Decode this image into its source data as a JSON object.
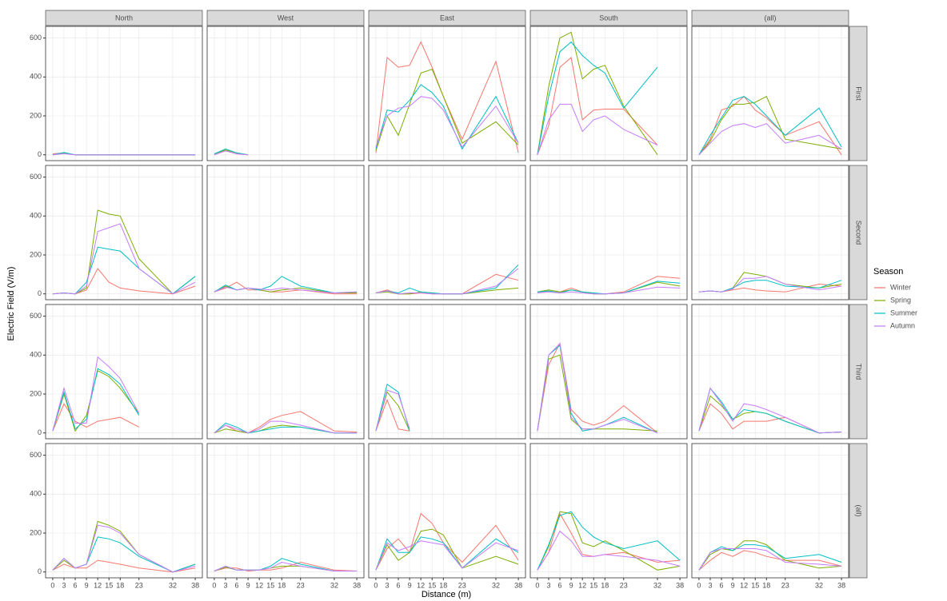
{
  "chart_data": {
    "type": "line",
    "x_label": "Distance (m)",
    "y_label": "Electric Field (V/m)",
    "legend_title": "Season",
    "legend_position": "right",
    "grid": true,
    "columns": [
      "North",
      "West",
      "East",
      "South",
      "(all)"
    ],
    "rows": [
      "First",
      "Second",
      "Third",
      "(all)"
    ],
    "x": [
      0,
      3,
      6,
      9,
      12,
      15,
      18,
      23,
      32,
      38
    ],
    "xlim": [
      -1.9,
      39.9
    ],
    "xticks": [
      0,
      3,
      6,
      9,
      12,
      15,
      18,
      23,
      32,
      38
    ],
    "ylim": [
      -30,
      660
    ],
    "yticks": [
      0,
      200,
      400,
      600
    ],
    "series": [
      {
        "name": "Winter",
        "color": "#F8766D"
      },
      {
        "name": "Spring",
        "color": "#7CAE00"
      },
      {
        "name": "Summer",
        "color": "#00BFC4"
      },
      {
        "name": "Autumn",
        "color": "#C77CFF"
      }
    ],
    "panels": [
      [
        [
          [
            5,
            10,
            0,
            0,
            0,
            0,
            0,
            0,
            0,
            0
          ],
          [
            0,
            8,
            0,
            0,
            0,
            0,
            0,
            0,
            0,
            0
          ],
          [
            0,
            12,
            0,
            0,
            0,
            0,
            0,
            0,
            0,
            0
          ],
          [
            0,
            6,
            0,
            0,
            0,
            0,
            0,
            0,
            0,
            0
          ]
        ],
        [
          [
            0,
            20,
            5,
            0,
            null,
            null,
            null,
            null,
            null,
            null
          ],
          [
            5,
            25,
            10,
            0,
            null,
            null,
            null,
            null,
            null,
            null
          ],
          [
            5,
            30,
            10,
            0,
            null,
            null,
            null,
            null,
            null,
            null
          ],
          [
            0,
            20,
            5,
            0,
            null,
            null,
            null,
            null,
            null,
            null
          ]
        ],
        [
          [
            10,
            500,
            450,
            460,
            580,
            450,
            300,
            80,
            480,
            10
          ],
          [
            20,
            200,
            100,
            260,
            420,
            440,
            300,
            60,
            170,
            50
          ],
          [
            30,
            230,
            220,
            280,
            360,
            320,
            250,
            30,
            300,
            60
          ],
          [
            40,
            200,
            240,
            250,
            300,
            290,
            230,
            40,
            250,
            60
          ]
        ],
        [
          [
            0,
            150,
            450,
            500,
            180,
            230,
            235,
            235,
            50,
            null
          ],
          [
            0,
            350,
            600,
            630,
            390,
            440,
            460,
            250,
            0,
            null
          ],
          [
            0,
            300,
            530,
            580,
            510,
            460,
            420,
            240,
            450,
            null
          ],
          [
            0,
            180,
            260,
            260,
            120,
            180,
            200,
            130,
            50,
            null
          ]
        ],
        [
          [
            0,
            80,
            230,
            250,
            300,
            230,
            190,
            100,
            170,
            0
          ],
          [
            0,
            70,
            180,
            260,
            260,
            270,
            300,
            80,
            50,
            30
          ],
          [
            0,
            100,
            190,
            280,
            300,
            260,
            200,
            100,
            240,
            40
          ],
          [
            0,
            60,
            120,
            150,
            160,
            140,
            160,
            60,
            100,
            30
          ]
        ]
      ],
      [
        [
          [
            0,
            5,
            0,
            20,
            130,
            60,
            30,
            15,
            0,
            40
          ],
          [
            0,
            5,
            0,
            30,
            430,
            410,
            400,
            180,
            0,
            90
          ],
          [
            0,
            5,
            0,
            60,
            240,
            230,
            220,
            130,
            0,
            90
          ],
          [
            0,
            5,
            0,
            40,
            320,
            340,
            360,
            130,
            0,
            60
          ]
        ],
        [
          [
            10,
            30,
            60,
            20,
            20,
            10,
            10,
            20,
            0,
            0
          ],
          [
            10,
            40,
            20,
            30,
            20,
            10,
            20,
            30,
            5,
            5
          ],
          [
            10,
            45,
            20,
            30,
            20,
            40,
            90,
            40,
            5,
            10
          ],
          [
            10,
            35,
            20,
            30,
            25,
            20,
            30,
            20,
            5,
            10
          ]
        ],
        [
          [
            5,
            20,
            0,
            0,
            5,
            0,
            0,
            0,
            100,
            70
          ],
          [
            5,
            10,
            0,
            0,
            10,
            5,
            0,
            0,
            20,
            30
          ],
          [
            5,
            15,
            5,
            30,
            10,
            5,
            0,
            0,
            30,
            150
          ],
          [
            5,
            15,
            0,
            5,
            5,
            0,
            0,
            0,
            40,
            130
          ]
        ],
        [
          [
            10,
            10,
            10,
            30,
            10,
            0,
            0,
            10,
            90,
            80
          ],
          [
            10,
            20,
            10,
            20,
            10,
            0,
            0,
            5,
            60,
            40
          ],
          [
            10,
            15,
            5,
            20,
            10,
            5,
            0,
            5,
            65,
            55
          ],
          [
            5,
            10,
            5,
            10,
            5,
            0,
            0,
            5,
            35,
            30
          ]
        ],
        [
          [
            10,
            15,
            10,
            20,
            30,
            20,
            15,
            10,
            50,
            40
          ],
          [
            10,
            15,
            10,
            30,
            110,
            100,
            90,
            50,
            30,
            50
          ],
          [
            10,
            15,
            10,
            30,
            60,
            70,
            70,
            40,
            30,
            70
          ],
          [
            10,
            15,
            10,
            25,
            80,
            80,
            90,
            50,
            20,
            40
          ]
        ]
      ],
      [
        [
          [
            10,
            150,
            60,
            30,
            60,
            70,
            80,
            30,
            null,
            null
          ],
          [
            10,
            200,
            10,
            90,
            320,
            290,
            230,
            100,
            null,
            null
          ],
          [
            10,
            210,
            20,
            70,
            330,
            300,
            250,
            90,
            null,
            null
          ],
          [
            10,
            230,
            50,
            50,
            390,
            340,
            280,
            100,
            null,
            null
          ]
        ],
        [
          [
            0,
            40,
            10,
            0,
            30,
            70,
            90,
            110,
            10,
            5
          ],
          [
            0,
            20,
            10,
            0,
            10,
            30,
            40,
            30,
            0,
            0
          ],
          [
            0,
            50,
            30,
            0,
            10,
            20,
            30,
            30,
            0,
            0
          ],
          [
            0,
            40,
            20,
            0,
            20,
            60,
            60,
            40,
            0,
            0
          ]
        ],
        [
          [
            10,
            170,
            20,
            10,
            null,
            null,
            null,
            null,
            null,
            null
          ],
          [
            10,
            210,
            140,
            10,
            null,
            null,
            null,
            null,
            null,
            null
          ],
          [
            10,
            250,
            210,
            10,
            null,
            null,
            null,
            null,
            null,
            null
          ],
          [
            10,
            220,
            200,
            20,
            null,
            null,
            null,
            null,
            null,
            null
          ]
        ],
        [
          [
            10,
            350,
            460,
            120,
            60,
            40,
            60,
            140,
            0,
            null
          ],
          [
            10,
            380,
            400,
            70,
            20,
            20,
            20,
            20,
            10,
            null
          ],
          [
            10,
            400,
            450,
            100,
            10,
            20,
            40,
            80,
            0,
            null
          ],
          [
            10,
            400,
            460,
            80,
            20,
            20,
            40,
            70,
            0,
            null
          ]
        ],
        [
          [
            10,
            150,
            100,
            20,
            60,
            60,
            60,
            80,
            0,
            5
          ],
          [
            10,
            190,
            140,
            70,
            100,
            110,
            100,
            60,
            0,
            5
          ],
          [
            10,
            230,
            160,
            70,
            120,
            110,
            100,
            60,
            0,
            5
          ],
          [
            10,
            230,
            150,
            60,
            150,
            140,
            120,
            80,
            0,
            5
          ]
        ]
      ],
      [
        [
          [
            10,
            40,
            20,
            20,
            60,
            50,
            40,
            20,
            0,
            20
          ],
          [
            10,
            60,
            20,
            40,
            260,
            240,
            210,
            90,
            0,
            40
          ],
          [
            10,
            70,
            20,
            40,
            180,
            170,
            150,
            80,
            0,
            40
          ],
          [
            10,
            70,
            20,
            40,
            240,
            230,
            200,
            90,
            0,
            30
          ]
        ],
        [
          [
            5,
            20,
            20,
            5,
            10,
            10,
            20,
            50,
            10,
            5
          ],
          [
            5,
            25,
            10,
            10,
            10,
            20,
            30,
            30,
            5,
            5
          ],
          [
            5,
            30,
            10,
            10,
            10,
            30,
            70,
            40,
            5,
            5
          ],
          [
            5,
            30,
            10,
            10,
            10,
            20,
            50,
            30,
            5,
            5
          ]
        ],
        [
          [
            10,
            120,
            170,
            100,
            300,
            250,
            150,
            50,
            240,
            60
          ],
          [
            10,
            140,
            60,
            100,
            210,
            220,
            190,
            20,
            80,
            40
          ],
          [
            10,
            170,
            100,
            100,
            180,
            170,
            150,
            20,
            170,
            100
          ],
          [
            10,
            150,
            110,
            130,
            160,
            150,
            140,
            20,
            150,
            110
          ]
        ],
        [
          [
            10,
            100,
            300,
            200,
            90,
            80,
            90,
            100,
            50,
            60
          ],
          [
            10,
            130,
            310,
            300,
            150,
            130,
            160,
            110,
            10,
            30
          ],
          [
            10,
            140,
            290,
            310,
            230,
            180,
            150,
            120,
            160,
            60
          ],
          [
            10,
            100,
            210,
            160,
            80,
            80,
            90,
            80,
            60,
            30
          ]
        ],
        [
          [
            10,
            60,
            100,
            80,
            110,
            100,
            80,
            60,
            60,
            30
          ],
          [
            10,
            90,
            120,
            110,
            160,
            160,
            140,
            60,
            20,
            30
          ],
          [
            10,
            100,
            130,
            110,
            140,
            140,
            130,
            70,
            90,
            50
          ],
          [
            10,
            100,
            120,
            120,
            120,
            120,
            110,
            50,
            40,
            30
          ]
        ]
      ]
    ]
  }
}
